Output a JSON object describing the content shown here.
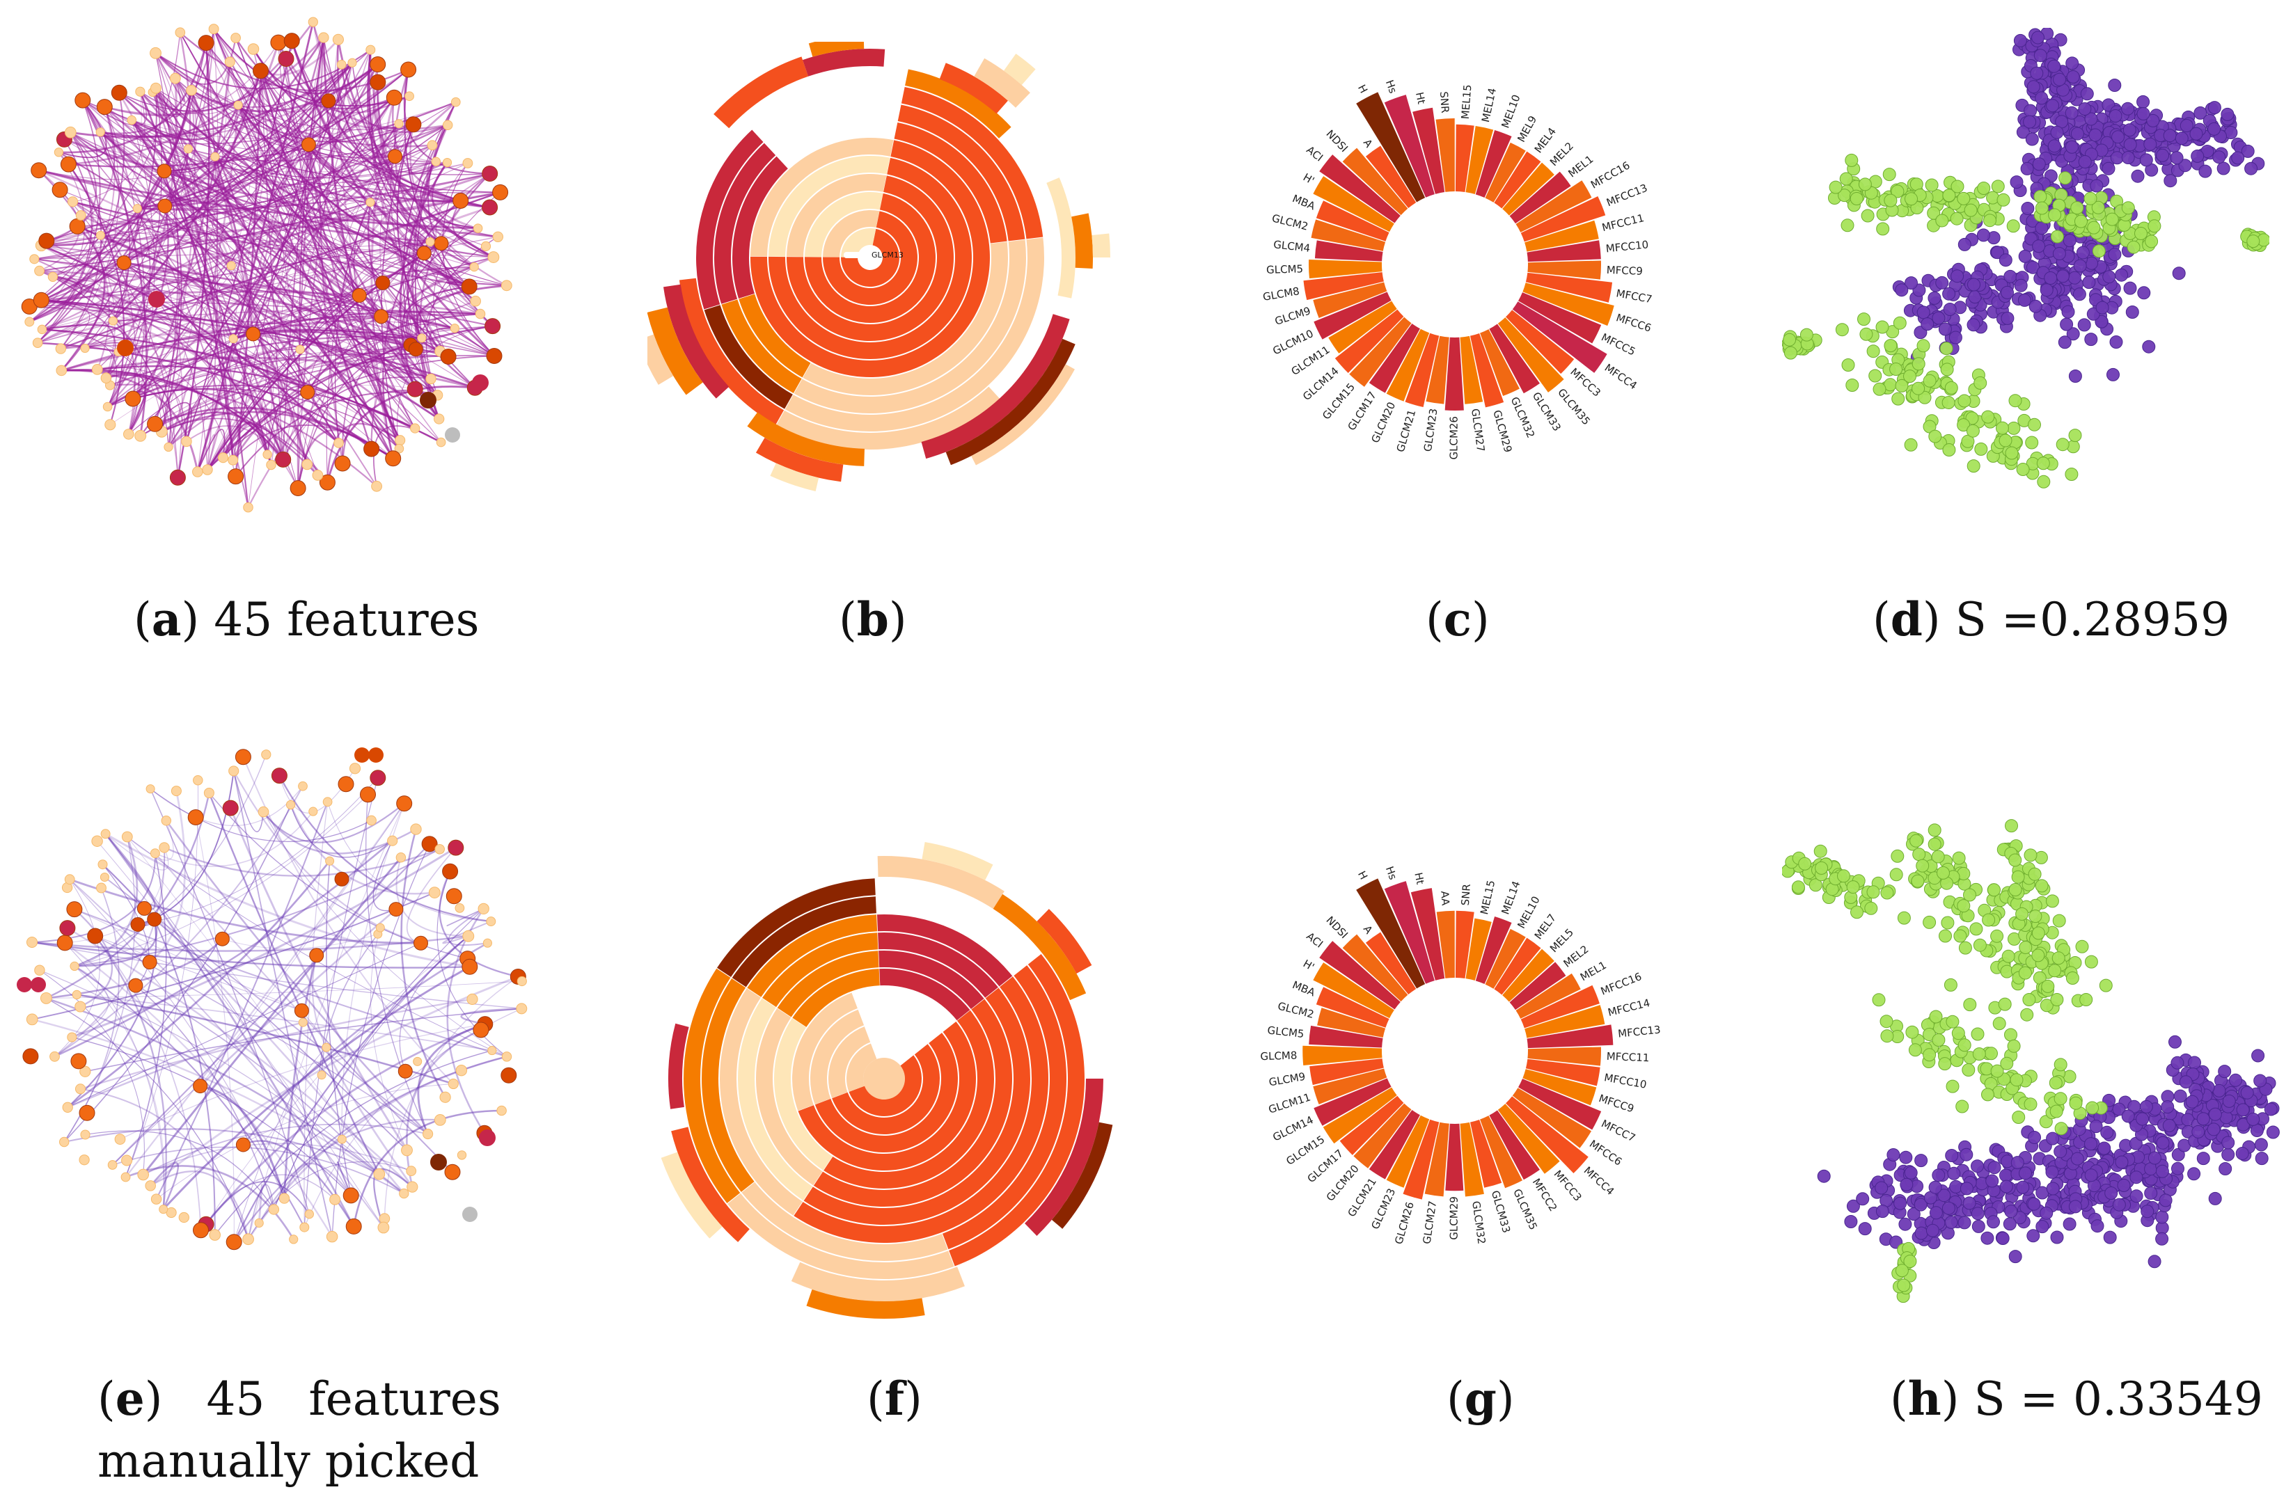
{
  "palette": {
    "edge_a": "#9b1f9b",
    "edge_e": "#6a3bb5",
    "node_light": "#fdd49e",
    "node_orange": "#f16913",
    "node_red": "#d94801",
    "node_crimson": "#c6264a",
    "node_dark": "#7f2704",
    "node_grey": "#bdbdbd",
    "ring_colors": [
      "#fdd0a2",
      "#fdae6b",
      "#f4501e",
      "#f57c00",
      "#c9283b",
      "#8b2500",
      "#fee6b8"
    ],
    "scatter_purple": "#6e3ab4",
    "scatter_green": "#a6e35a"
  },
  "panels": {
    "a": {
      "letter": "a",
      "text": " 45 features"
    },
    "b": {
      "letter": "b",
      "text": "",
      "center_label": "GLCM13"
    },
    "c": {
      "letter": "c",
      "text": "",
      "labels": [
        "H",
        "Hs",
        "Ht",
        "SNR",
        "MEL15",
        "MEL14",
        "MEL10",
        "MEL9",
        "MEL4",
        "MEL2",
        "MEL1",
        "MFCC16",
        "MFCC13",
        "MFCC11",
        "MFCC10",
        "MFCC9",
        "MFCC7",
        "MFCC6",
        "MFCC5",
        "MFCC4",
        "MFCC3",
        "GLCM35",
        "GLCM33",
        "GLCM32",
        "GLCM29",
        "GLCM27",
        "GLCM26",
        "GLCM23",
        "GLCM21",
        "GLCM20",
        "GLCM17",
        "GLCM15",
        "GLCM14",
        "GLCM11",
        "GLCM10",
        "GLCM9",
        "GLCM8",
        "GLCM5",
        "GLCM4",
        "GLCM2",
        "MBA",
        "H'",
        "ACI",
        "NDSI",
        "A"
      ],
      "values": [
        0.95,
        0.85,
        0.7,
        0.6,
        0.55,
        0.55,
        0.55,
        0.5,
        0.5,
        0.5,
        0.55,
        0.65,
        0.7,
        0.6,
        0.6,
        0.6,
        0.7,
        0.75,
        0.7,
        0.85,
        0.65,
        0.7,
        0.6,
        0.55,
        0.6,
        0.55,
        0.6,
        0.55,
        0.6,
        0.6,
        0.6,
        0.65,
        0.65,
        0.6,
        0.65,
        0.6,
        0.65,
        0.6,
        0.55,
        0.6,
        0.6,
        0.7,
        0.75,
        0.65,
        0.55
      ]
    },
    "d": {
      "letter": "d",
      "text": " S =0.28959"
    },
    "e": {
      "letter": "e",
      "text": "   45   features",
      "text2": "manually picked"
    },
    "f": {
      "letter": "f",
      "text": ""
    },
    "g": {
      "letter": "g",
      "text": "",
      "labels": [
        "H",
        "Hs",
        "Ht",
        "AA",
        "SNR",
        "MEL15",
        "MEL14",
        "MEL10",
        "MEL7",
        "MEL5",
        "MEL2",
        "MEL1",
        "MFCC16",
        "MFCC14",
        "MFCC13",
        "MFCC11",
        "MFCC10",
        "MFCC9",
        "MFCC7",
        "MFCC6",
        "MFCC4",
        "MFCC3",
        "MFCC2",
        "GLCM35",
        "GLCM33",
        "GLCM32",
        "GLCM29",
        "GLCM27",
        "GLCM26",
        "GLCM23",
        "GLCM21",
        "GLCM20",
        "GLCM17",
        "GLCM15",
        "GLCM14",
        "GLCM11",
        "GLCM9",
        "GLCM8",
        "GLCM5",
        "GLCM2",
        "MBA",
        "H'",
        "ACI",
        "NDSI",
        "A"
      ],
      "values": [
        0.95,
        0.85,
        0.75,
        0.55,
        0.55,
        0.5,
        0.55,
        0.5,
        0.5,
        0.5,
        0.5,
        0.55,
        0.65,
        0.65,
        0.7,
        0.6,
        0.6,
        0.6,
        0.7,
        0.7,
        0.8,
        0.65,
        0.6,
        0.6,
        0.55,
        0.6,
        0.55,
        0.6,
        0.65,
        0.6,
        0.6,
        0.6,
        0.6,
        0.65,
        0.65,
        0.6,
        0.6,
        0.65,
        0.6,
        0.55,
        0.6,
        0.7,
        0.75,
        0.65,
        0.55
      ]
    },
    "h": {
      "letter": "h",
      "text": " S = 0.33549"
    }
  }
}
